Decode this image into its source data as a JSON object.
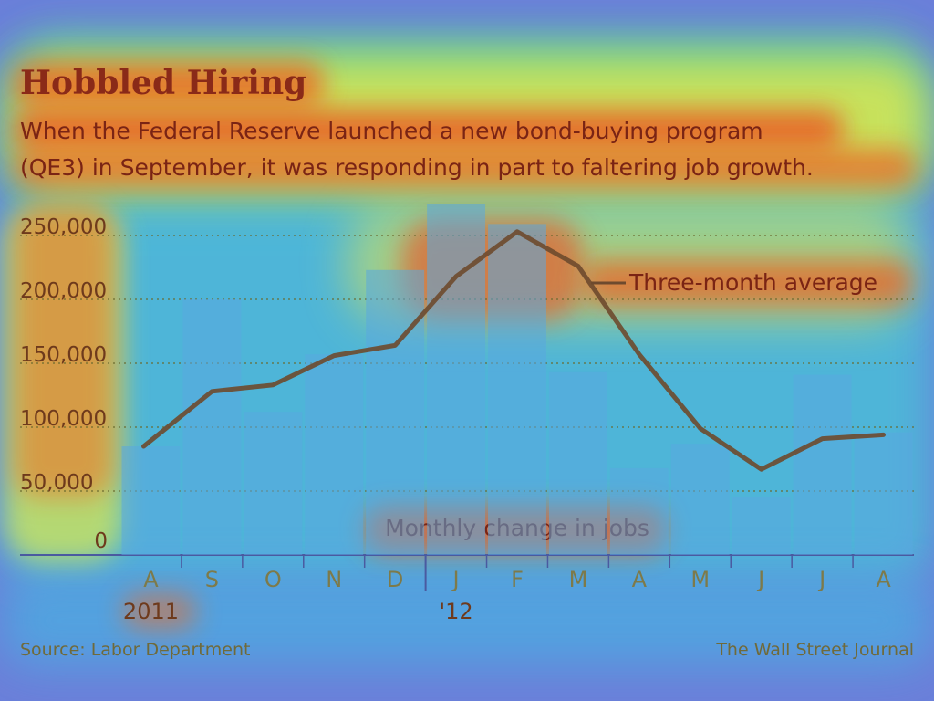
{
  "chart_data": {
    "type": "bar",
    "title": "Hobbled Hiring",
    "subtitle_lines": [
      "When the Federal Reserve launched a new bond-buying program",
      "(QE3) in September, it was responding in part to faltering job growth."
    ],
    "categories": [
      "A",
      "S",
      "O",
      "N",
      "D",
      "J",
      "F",
      "M",
      "A",
      "M",
      "J",
      "J",
      "A"
    ],
    "year_labels": [
      {
        "label": "2011",
        "category_index": 0
      },
      {
        "label": "'12",
        "category_index": 5
      }
    ],
    "series": [
      {
        "name": "Monthly change in jobs",
        "kind": "bar",
        "values": [
          85000,
          200000,
          112000,
          157000,
          223000,
          275000,
          259000,
          143000,
          68000,
          87000,
          45000,
          141000,
          96000
        ]
      },
      {
        "name": "Three-month average",
        "kind": "line",
        "values": [
          85000,
          128000,
          133000,
          156000,
          164000,
          218000,
          253000,
          226000,
          157000,
          99000,
          67000,
          91000,
          94000
        ]
      }
    ],
    "ylim": [
      0,
      250000
    ],
    "yticks": [
      0,
      50000,
      100000,
      150000,
      200000,
      250000
    ],
    "ytick_labels": [
      "0",
      "50,000",
      "100,000",
      "150,000",
      "200,000",
      "250,000"
    ],
    "grid": true,
    "grid_style": "dotted",
    "annotations": [
      "Three-month average",
      "Monthly change in jobs"
    ],
    "xlabel": "",
    "ylabel": ""
  },
  "footer": {
    "source": "Source: Labor Department",
    "credit": "The Wall Street Journal"
  },
  "colors": {
    "background": "#6b7fd9",
    "bars": "#5aa8e0",
    "line": "#6e4a2e",
    "grid": "#6a6a2e",
    "axis": "#4a5aa0"
  }
}
